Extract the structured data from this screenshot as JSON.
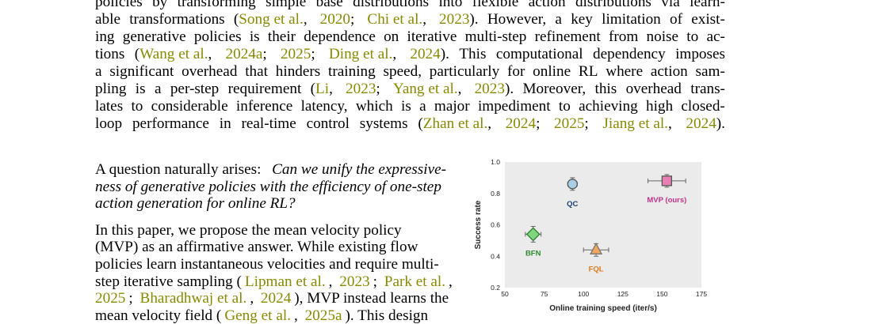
{
  "top_paragraph": {
    "lines": [
      [
        "policies",
        "by",
        "transforming",
        "simple",
        "base",
        "distributions",
        "into",
        "flexible",
        "action",
        "distributions",
        "via",
        "learn-"
      ],
      [
        "able",
        "transformations",
        "(",
        "Song et al.",
        ",",
        "2020",
        ";",
        "Chi et al.",
        ",",
        "2023",
        ").",
        "However,",
        "a",
        "key",
        "limitation",
        "of",
        "exist-"
      ],
      [
        "ing",
        "generative",
        "policies",
        "is",
        "their",
        "dependence",
        "on",
        "iterative",
        "multi-step",
        "refinement",
        "from",
        "noise",
        "to",
        "ac-"
      ],
      [
        "tions",
        "(",
        "Wang et al.",
        ",",
        "2024a",
        ";",
        "2025",
        ";",
        "Ding et al.",
        ",",
        "2024",
        ").",
        "This",
        "computational",
        "dependency",
        "imposes"
      ],
      [
        "a",
        "significant",
        "overhead",
        "that",
        "hinders",
        "training",
        "speed,",
        "particularly",
        "for",
        "online",
        "RL",
        "where",
        "action",
        "sam-"
      ],
      [
        "pling",
        "is",
        "a",
        "per-step",
        "requirement",
        "(",
        "Li",
        ",",
        "2023",
        ";",
        "Yang et al.",
        ",",
        "2023",
        ").",
        "Moreover,",
        "this",
        "overhead",
        "trans-"
      ],
      [
        "lates",
        "to",
        "considerable",
        "inference",
        "latency,",
        "which",
        "is",
        "a",
        "major",
        "impediment",
        "to",
        "achieving",
        "high",
        "closed-"
      ],
      [
        "loop",
        "performance",
        "in",
        "real-time",
        "control",
        "systems",
        "(",
        "Zhan et al.",
        ",",
        "2024",
        ";",
        "2025",
        ";",
        "Jiang et al.",
        ",",
        "2024",
        ")."
      ]
    ]
  },
  "question_paragraph": {
    "line1_plain": "A question naturally arises:",
    "line1_italic": "Can we unify the expressive-",
    "line2": "ness of generative policies with the efficiency of one-step",
    "line3": "action generation for online RL?"
  },
  "method_paragraph": {
    "line1": "In this paper, we propose the mean velocity policy",
    "line2": "(MVP) as an affirmative answer. While existing flow",
    "line3": "policies learn instantaneous velocities and require multi-",
    "line4_a": "step iterative sampling (",
    "line4_c1": "Lipman et al.",
    "line4_b": ", ",
    "line4_c2": "2023",
    "line4_d": "; ",
    "line4_c3": "Park et al.",
    "line4_e": ",",
    "line5_c1": "2025",
    "line5_a": "; ",
    "line5_c2": "Bharadhwaj et al.",
    "line5_b": ", ",
    "line5_c3": "2024",
    "line5_d": "), MVP instead learns the",
    "line6_a": "mean velocity field (",
    "line6_c1": "Geng et al.",
    "line6_b": ", ",
    "line6_c2": "2025a",
    "line6_d": "). This design"
  },
  "chart_data": {
    "type": "scatter",
    "xlabel": "Online training speed (iter/s)",
    "ylabel": "Success rate",
    "xlim": [
      50,
      175
    ],
    "ylim": [
      0.2,
      1.0
    ],
    "xticks": [
      50,
      75,
      100,
      125,
      150,
      175
    ],
    "yticks": [
      0.2,
      0.4,
      0.6,
      0.8,
      1.0
    ],
    "grid": false,
    "points": [
      {
        "label": "QC",
        "x": 93,
        "y": 0.86,
        "xerr": 3,
        "yerr": 0.04,
        "marker": "circle",
        "fill": "#a9cfe8",
        "stroke": "#555555",
        "label_color": "#1f3f6e"
      },
      {
        "label": "MVP (ours)",
        "x": 153,
        "y": 0.88,
        "xerr": 12,
        "yerr": 0.04,
        "marker": "square",
        "fill": "#e87fb3",
        "stroke": "#555555",
        "label_color": "#c2338a"
      },
      {
        "label": "BFN",
        "x": 68,
        "y": 0.54,
        "xerr": 5,
        "yerr": 0.05,
        "marker": "diamond",
        "fill": "#7fd67f",
        "stroke": "#2e7d2e",
        "label_color": "#2e8b2e"
      },
      {
        "label": "FQL",
        "x": 108,
        "y": 0.44,
        "xerr": 8,
        "yerr": 0.04,
        "marker": "triangle",
        "fill": "#f2a659",
        "stroke": "#777777",
        "label_color": "#e07b1a"
      }
    ]
  },
  "colors": {
    "citation": "#8a8a00",
    "plot_background": "#ebebeb"
  }
}
